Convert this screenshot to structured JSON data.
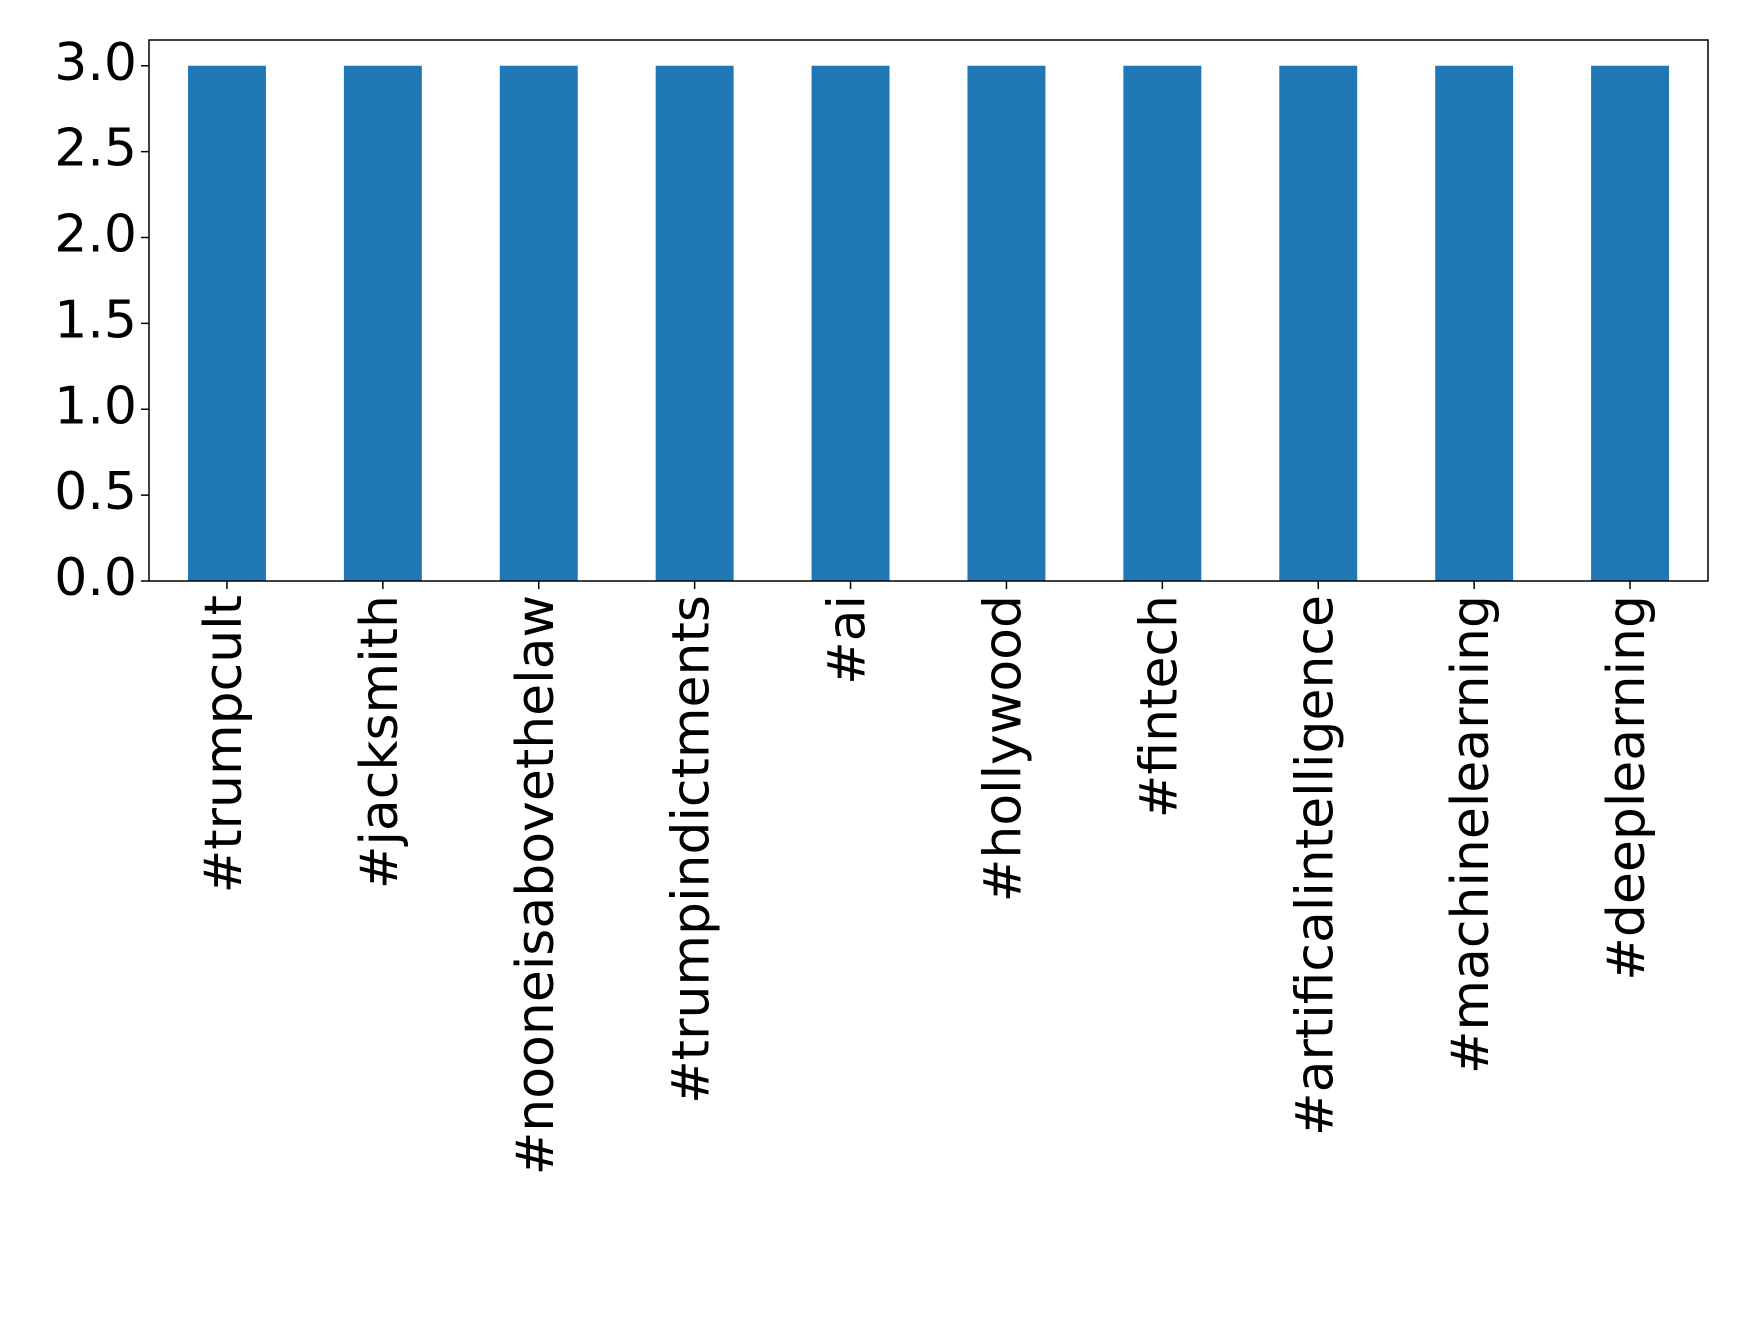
{
  "chart_data": {
    "type": "bar",
    "categories": [
      "#trumpcult",
      "#jacksmith",
      "#nooneisabovethelaw",
      "#trumpindictments",
      "#ai",
      "#hollywood",
      "#fintech",
      "#artificalintelligence",
      "#machinelearning",
      "#deeplearning"
    ],
    "values": [
      3,
      3,
      3,
      3,
      3,
      3,
      3,
      3,
      3,
      3
    ],
    "color": "#1f77b4",
    "ylim": [
      0,
      3.15
    ],
    "yticks": [
      {
        "value": 0,
        "label": "0.0"
      },
      {
        "value": 0.5,
        "label": "0.5"
      },
      {
        "value": 1,
        "label": "1.0"
      },
      {
        "value": 1.5,
        "label": "1.5"
      },
      {
        "value": 2,
        "label": "2.0"
      },
      {
        "value": 2.5,
        "label": "2.5"
      },
      {
        "value": 3,
        "label": "3.0"
      }
    ],
    "grid": false
  }
}
